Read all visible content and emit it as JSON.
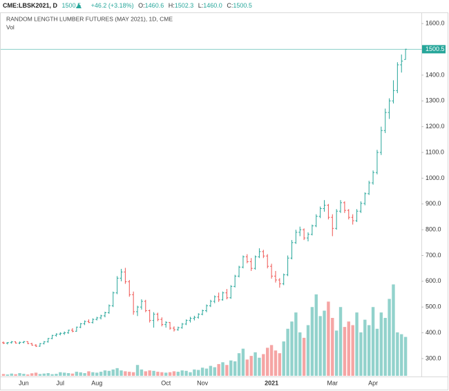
{
  "header": {
    "symbol": "CME:LBSK2021, D",
    "last": "1500.5",
    "change": "+46.2 (+3.18%)",
    "o_label": "O:",
    "o_value": "1460.6",
    "h_label": "H:",
    "h_value": "1502.3",
    "l_label": "L:",
    "l_value": "1460.0",
    "c_label": "C:",
    "c_value": "1500.5"
  },
  "chart_data": {
    "type": "ohlc",
    "title": "RANDOM LENGTH LUMBER FUTURES (MAY 2021), 1D, CME",
    "volume_label": "Vol",
    "up_color": "#26a69a",
    "down_color": "#ef5350",
    "volume_up_color": "#92d2cc",
    "volume_down_color": "#f5a5a4",
    "categories": [
      null,
      null,
      null,
      null,
      null,
      "Jun",
      null,
      null,
      null,
      null,
      null,
      null,
      null,
      null,
      "Jul",
      null,
      null,
      null,
      null,
      null,
      null,
      null,
      null,
      "Aug",
      null,
      null,
      null,
      null,
      null,
      null,
      null,
      null,
      null,
      null,
      null,
      null,
      null,
      null,
      null,
      null,
      "Oct",
      null,
      null,
      null,
      null,
      null,
      null,
      null,
      null,
      "Nov",
      null,
      null,
      null,
      null,
      null,
      null,
      null,
      null,
      null,
      null,
      null,
      null,
      null,
      null,
      null,
      null,
      "2021",
      null,
      null,
      null,
      null,
      null,
      null,
      null,
      null,
      null,
      null,
      null,
      null,
      null,
      null,
      "Mar",
      null,
      null,
      null,
      null,
      null,
      null,
      null,
      null,
      null,
      "Apr",
      null,
      null,
      null,
      null,
      null,
      null,
      null,
      null
    ],
    "open": [
      362,
      360,
      362,
      365,
      360,
      363,
      366,
      358,
      352,
      348,
      358,
      365,
      378,
      390,
      395,
      398,
      400,
      410,
      406,
      422,
      435,
      444,
      440,
      452,
      458,
      466,
      478,
      505,
      555,
      612,
      636,
      598,
      548,
      482,
      500,
      522,
      486,
      448,
      472,
      452,
      432,
      440,
      418,
      412,
      420,
      434,
      448,
      456,
      460,
      472,
      486,
      505,
      522,
      540,
      528,
      555,
      536,
      580,
      620,
      655,
      695,
      676,
      650,
      695,
      715,
      698,
      658,
      620,
      605,
      590,
      625,
      690,
      750,
      790,
      800,
      768,
      782,
      815,
      852,
      882,
      895,
      848,
      805,
      872,
      905,
      875,
      848,
      835,
      872,
      902,
      940,
      982,
      1022,
      1100,
      1185,
      1255,
      1300,
      1340,
      1440,
      1460.6
    ],
    "high": [
      366,
      364,
      368,
      367,
      366,
      368,
      367,
      361,
      356,
      360,
      368,
      380,
      392,
      398,
      402,
      405,
      412,
      418,
      424,
      438,
      448,
      452,
      456,
      462,
      470,
      482,
      510,
      560,
      620,
      648,
      652,
      605,
      560,
      505,
      530,
      528,
      490,
      480,
      478,
      460,
      445,
      442,
      425,
      424,
      438,
      452,
      462,
      466,
      476,
      490,
      510,
      528,
      545,
      556,
      560,
      570,
      585,
      625,
      660,
      700,
      705,
      690,
      700,
      728,
      722,
      705,
      668,
      640,
      612,
      630,
      700,
      760,
      800,
      812,
      805,
      790,
      820,
      860,
      890,
      915,
      900,
      860,
      880,
      915,
      910,
      880,
      860,
      880,
      910,
      945,
      990,
      1030,
      1110,
      1200,
      1270,
      1310,
      1380,
      1450,
      1480,
      1502.3
    ],
    "low": [
      356,
      355,
      358,
      358,
      356,
      359,
      356,
      350,
      345,
      346,
      355,
      362,
      375,
      385,
      390,
      392,
      396,
      402,
      404,
      418,
      430,
      438,
      436,
      448,
      452,
      460,
      474,
      500,
      550,
      600,
      590,
      540,
      470,
      465,
      490,
      480,
      440,
      420,
      445,
      425,
      420,
      412,
      405,
      408,
      416,
      430,
      440,
      448,
      455,
      468,
      480,
      500,
      515,
      520,
      525,
      530,
      532,
      576,
      615,
      650,
      670,
      640,
      645,
      690,
      690,
      650,
      610,
      595,
      575,
      585,
      620,
      685,
      745,
      775,
      760,
      755,
      778,
      810,
      845,
      870,
      840,
      775,
      800,
      865,
      865,
      840,
      820,
      830,
      865,
      895,
      935,
      975,
      1015,
      1090,
      1175,
      1230,
      1290,
      1330,
      1410,
      1460.0
    ],
    "close": [
      360,
      362,
      365,
      360,
      363,
      366,
      358,
      352,
      348,
      358,
      365,
      378,
      390,
      395,
      398,
      400,
      410,
      406,
      422,
      435,
      444,
      440,
      452,
      458,
      466,
      478,
      505,
      555,
      612,
      636,
      598,
      548,
      482,
      500,
      522,
      486,
      448,
      472,
      452,
      432,
      440,
      418,
      412,
      420,
      434,
      448,
      456,
      460,
      472,
      486,
      505,
      522,
      540,
      528,
      555,
      536,
      580,
      620,
      655,
      695,
      676,
      650,
      695,
      715,
      698,
      658,
      620,
      605,
      590,
      625,
      690,
      750,
      790,
      800,
      768,
      782,
      815,
      852,
      882,
      895,
      848,
      805,
      872,
      905,
      875,
      848,
      835,
      872,
      902,
      940,
      982,
      1022,
      1100,
      1185,
      1255,
      1300,
      1340,
      1440,
      1454.3,
      1500.5
    ],
    "volume": [
      20,
      15,
      25,
      18,
      30,
      22,
      15,
      28,
      35,
      20,
      25,
      30,
      18,
      22,
      40,
      35,
      30,
      25,
      45,
      38,
      30,
      50,
      40,
      35,
      45,
      60,
      55,
      70,
      85,
      60,
      50,
      45,
      40,
      120,
      70,
      50,
      60,
      55,
      45,
      40,
      35,
      40,
      50,
      45,
      60,
      55,
      40,
      70,
      65,
      90,
      80,
      110,
      95,
      130,
      150,
      120,
      170,
      160,
      250,
      300,
      180,
      220,
      260,
      200,
      240,
      310,
      340,
      280,
      250,
      380,
      520,
      600,
      700,
      480,
      420,
      560,
      760,
      900,
      660,
      720,
      820,
      640,
      500,
      760,
      540,
      600,
      560,
      700,
      480,
      620,
      560,
      760,
      520,
      700,
      640,
      850,
      1010,
      480,
      460,
      430
    ],
    "ylim": [
      233,
      1638
    ],
    "y2lim": [
      0,
      4000
    ],
    "yticks": [
      {
        "value": 300,
        "label": "300.0"
      },
      {
        "value": 400,
        "label": "400.0"
      },
      {
        "value": 500,
        "label": "500.0"
      },
      {
        "value": 600,
        "label": "600.0"
      },
      {
        "value": 700,
        "label": "700.0"
      },
      {
        "value": 800,
        "label": "800.0"
      },
      {
        "value": 900,
        "label": "900.0"
      },
      {
        "value": 1000,
        "label": "1000.0"
      },
      {
        "value": 1100,
        "label": "1100.0"
      },
      {
        "value": 1200,
        "label": "1200.0"
      },
      {
        "value": 1300,
        "label": "1300.0"
      },
      {
        "value": 1400,
        "label": "1400.0"
      },
      {
        "value": 1500,
        "label": "1500.0"
      },
      {
        "value": 1600,
        "label": "1600.0"
      }
    ]
  }
}
